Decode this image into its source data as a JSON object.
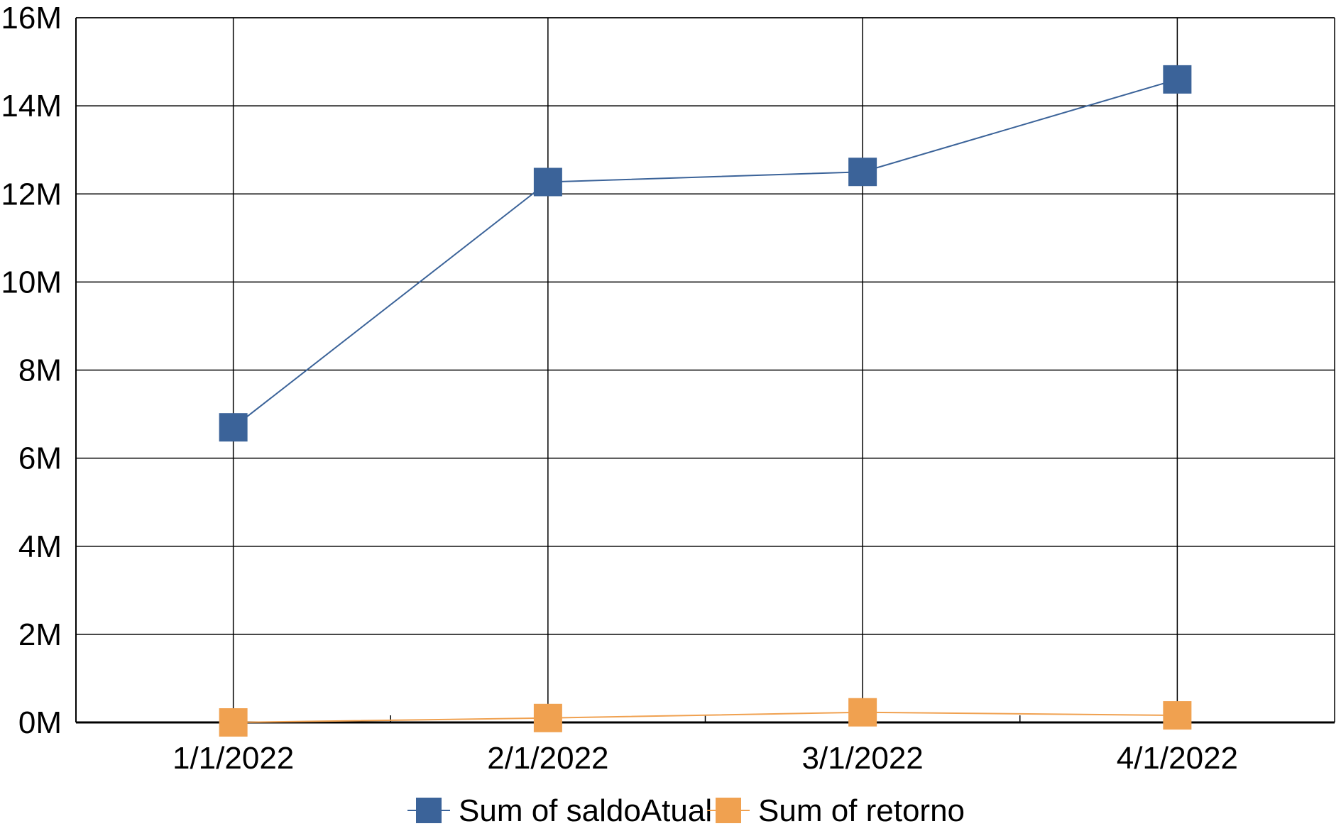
{
  "chart_data": {
    "type": "line",
    "categories": [
      "1/1/2022",
      "2/1/2022",
      "3/1/2022",
      "4/1/2022"
    ],
    "series": [
      {
        "name": "Sum of saldoAtual",
        "color": "#3b6399",
        "values": [
          6700000,
          12270000,
          12500000,
          14600000
        ]
      },
      {
        "name": "Sum of retorno",
        "color": "#f0a150",
        "values": [
          0,
          100000,
          230000,
          160000
        ]
      }
    ],
    "yticks": [
      "0M",
      "2M",
      "4M",
      "6M",
      "8M",
      "10M",
      "12M",
      "14M",
      "16M"
    ],
    "ylim": [
      0,
      16000000
    ],
    "grid": true,
    "legend_position": "bottom",
    "marker": "square",
    "title": "",
    "xlabel": "",
    "ylabel": ""
  }
}
